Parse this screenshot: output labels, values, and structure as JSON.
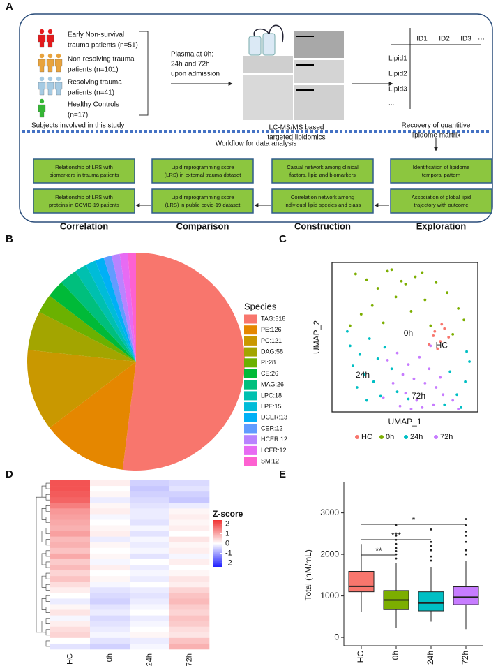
{
  "panel_a": {
    "label": "A",
    "subjects": [
      {
        "lines": [
          "Early Non-survival",
          "trauma patients (n=51)"
        ]
      },
      {
        "lines": [
          "Non-resolving trauma",
          "patients (n=101)"
        ]
      },
      {
        "lines": [
          "Resolving trauma",
          "patients (n=41)"
        ]
      },
      {
        "lines": [
          "Healthy Controls",
          "(n=17)"
        ]
      }
    ],
    "subjects_caption": "Subjects involved in this study",
    "plasma": [
      "Plasma at 0h;",
      "24h and 72h",
      "upon admission"
    ],
    "platform_caption": [
      "LC-MS/MS based",
      "targeted lipidomics"
    ],
    "matrix": {
      "columns": [
        "ID1",
        "ID2",
        "ID3",
        "···"
      ],
      "rows": [
        "Lipid1",
        "Lipid2",
        "Lipid3",
        "..."
      ]
    },
    "matrix_caption": [
      "Recovery of quantitive",
      "lipidome martrix"
    ],
    "workflow_title": "Workflow for data analysis",
    "stages": [
      {
        "title": "Correlation",
        "boxes": [
          [
            "Relationship of LRS with",
            "biomarkers in trauma patients"
          ],
          [
            "Relationship of LRS with",
            "proteins in COVID-19 patients"
          ]
        ]
      },
      {
        "title": "Comparison",
        "boxes": [
          [
            "Lipid reprogramming score",
            "(LRS) in external trauma dataset"
          ],
          [
            "Lipid reprogramming score",
            "(LRS) in public covid-19 dataset"
          ]
        ]
      },
      {
        "title": "Construction",
        "boxes": [
          [
            "Casual network among clinical",
            "factors, lipid and biomarkers"
          ],
          [
            "Correlation network among",
            "individual lipid species and class"
          ]
        ]
      },
      {
        "title": "Exploration",
        "boxes": [
          [
            "Identification of lipidome",
            "temporal pattern"
          ],
          [
            "Association of global lipid",
            "trajectory with outcome"
          ]
        ]
      }
    ]
  },
  "chart_data": [
    {
      "type": "pie",
      "label": "B",
      "legend_title": "Species",
      "categories": [
        "TAG:518",
        "PE:126",
        "PC:121",
        "DAG:58",
        "PI:28",
        "CE:26",
        "MAG:26",
        "LPC:18",
        "LPE:15",
        "DCER:13",
        "CER:12",
        "HCER:12",
        "LCER:12",
        "SM:12"
      ],
      "values": [
        518,
        126,
        121,
        58,
        28,
        26,
        26,
        18,
        15,
        13,
        12,
        12,
        12,
        12
      ],
      "colors": [
        "#F8766D",
        "#E58700",
        "#C99800",
        "#A3A500",
        "#6BB100",
        "#00BA38",
        "#00BF7D",
        "#00C0AF",
        "#00BCD8",
        "#00B0F6",
        "#619CFF",
        "#B983FF",
        "#E76BF3",
        "#FD61D1"
      ]
    },
    {
      "type": "scatter",
      "label": "C",
      "xlabel": "UMAP_1",
      "ylabel": "UMAP_2",
      "xlim": [
        -0.5,
        10
      ],
      "ylim": [
        0,
        10.4
      ],
      "series": [
        {
          "name": "HC",
          "color": "#F8766D",
          "x": [
            6.8,
            7.3,
            7.6,
            7.1,
            6.5,
            7.9,
            7.4,
            6.9
          ],
          "values": [
            5.3,
            4.9,
            5.8,
            4.4,
            4.7,
            5.2,
            6.1,
            5.6
          ]
        },
        {
          "name": "0h",
          "color": "#7CAE00",
          "x": [
            1.2,
            2.0,
            2.8,
            3.5,
            4.1,
            4.8,
            5.5,
            6.2,
            7.0,
            7.8,
            8.6,
            1.6,
            2.4,
            3.2,
            4.5,
            5.2,
            6.6,
            8.2,
            9.0,
            0.8,
            3.8,
            6.0
          ],
          "values": [
            9.6,
            9.2,
            8.6,
            9.8,
            8.0,
            8.9,
            9.4,
            7.8,
            9.0,
            8.3,
            7.2,
            6.8,
            7.4,
            6.2,
            9.1,
            7.0,
            6.0,
            5.4,
            6.4,
            6.0,
            9.9,
            9.7
          ]
        },
        {
          "name": "24h",
          "color": "#00BFC4",
          "x": [
            0.8,
            1.5,
            2.2,
            1.0,
            2.8,
            1.8,
            3.3,
            0.6,
            2.5,
            1.3,
            3.8,
            4.2,
            8.5,
            9.1,
            8.0,
            9.4,
            7.6,
            8.8,
            5.0,
            2.0,
            3.0,
            9.2
          ],
          "values": [
            4.6,
            4.0,
            5.1,
            3.2,
            3.7,
            2.6,
            4.5,
            5.6,
            2.1,
            1.7,
            3.0,
            1.4,
            1.2,
            2.1,
            2.8,
            3.5,
            0.5,
            0.3,
            0.9,
            0.8,
            1.1,
            4.2
          ]
        },
        {
          "name": "72h",
          "color": "#C77CFF",
          "x": [
            3.5,
            4.2,
            5.0,
            5.8,
            6.5,
            4.6,
            5.4,
            6.2,
            7.0,
            3.9,
            4.8,
            5.6,
            6.8,
            7.5,
            8.2,
            4.4,
            5.2,
            6.0,
            7.3,
            8.6,
            3.2,
            6.6
          ],
          "values": [
            3.6,
            4.1,
            3.3,
            3.8,
            3.0,
            2.6,
            2.3,
            2.0,
            1.7,
            2.0,
            1.3,
            0.8,
            0.5,
            1.2,
            0.8,
            0.4,
            0.2,
            0.3,
            2.4,
            0.2,
            1.0,
            4.6
          ]
        }
      ],
      "annotations": [
        {
          "text": "0h",
          "x": 5.0,
          "y": 5.44
        },
        {
          "text": "HC",
          "x": 7.4,
          "y": 4.6
        },
        {
          "text": "24h",
          "x": 1.71,
          "y": 2.53
        },
        {
          "text": "72h",
          "x": 5.73,
          "y": 1.07
        }
      ]
    },
    {
      "type": "heatmap",
      "label": "D",
      "categories": [
        "HC",
        "0h",
        "24h",
        "72h"
      ],
      "values": [
        [
          2,
          0.2,
          -0.5,
          -0.4
        ],
        [
          2,
          0,
          -0.6,
          -0.3
        ],
        [
          1.9,
          0.1,
          -0.5,
          -0.5
        ],
        [
          1.8,
          -0.2,
          -0.4,
          -0.6
        ],
        [
          1.5,
          0.1,
          -0.3,
          -0.2
        ],
        [
          1.2,
          0.2,
          -0.2,
          0.1
        ],
        [
          1.1,
          -0.1,
          -0.2,
          0.2
        ],
        [
          1,
          0,
          -0.3,
          0.1
        ],
        [
          0.9,
          0.1,
          -0.1,
          0.2
        ],
        [
          1.1,
          0.2,
          -0.3,
          0
        ],
        [
          0.8,
          -0.2,
          -0.1,
          0.3
        ],
        [
          0.9,
          0.1,
          -0.2,
          0.1
        ],
        [
          0.7,
          0,
          -0.1,
          0.2
        ],
        [
          1,
          0.1,
          -0.3,
          -0.1
        ],
        [
          0.6,
          -0.1,
          0,
          0.2
        ],
        [
          0.8,
          0.2,
          -0.2,
          0
        ],
        [
          0.5,
          0,
          -0.1,
          0.1
        ],
        [
          0.7,
          0.1,
          -0.2,
          0.3
        ],
        [
          0.4,
          -0.1,
          0,
          0.2
        ],
        [
          0.2,
          -0.3,
          -0.2,
          0.5
        ],
        [
          0,
          -0.4,
          -0.3,
          0.7
        ],
        [
          -0.2,
          -0.5,
          -0.2,
          0.8
        ],
        [
          0.1,
          -0.3,
          -0.1,
          0.6
        ],
        [
          0.3,
          -0.2,
          0,
          0.5
        ],
        [
          -0.1,
          -0.4,
          -0.2,
          0.7
        ],
        [
          0.2,
          -0.3,
          -0.1,
          0.6
        ],
        [
          0.4,
          -0.2,
          0,
          0.4
        ],
        [
          0.5,
          -0.1,
          0.1,
          0.3
        ],
        [
          0,
          -0.3,
          -0.2,
          0.7
        ],
        [
          -0.3,
          -0.5,
          -0.1,
          0.9
        ]
      ],
      "legend_title": "Z-score",
      "zlim": [
        -2.4,
        2.4
      ],
      "zticks": [
        2,
        1,
        0,
        -1,
        -2
      ],
      "colors": [
        "#2020ff",
        "#ffffff",
        "#f03030"
      ]
    },
    {
      "type": "box",
      "label": "E",
      "ylabel": "Total (nM/mL)",
      "categories": [
        "HC",
        "0h",
        "24h",
        "72h"
      ],
      "colors": [
        "#F8766D",
        "#7CAE00",
        "#00BFC4",
        "#C77CFF"
      ],
      "ylim": [
        -200,
        3750
      ],
      "yticks": [
        0,
        1000,
        2000,
        3000
      ],
      "boxes": [
        {
          "whisker_low": 620,
          "q1": 1100,
          "median": 1230,
          "q3": 1590,
          "whisker_high": 2250,
          "outliers": []
        },
        {
          "whisker_low": 230,
          "q1": 670,
          "median": 900,
          "q3": 1130,
          "whisker_high": 1800,
          "outliers": [
            1900,
            2000,
            2080,
            2150,
            2250,
            2350,
            2450,
            2700
          ]
        },
        {
          "whisker_low": 380,
          "q1": 640,
          "median": 830,
          "q3": 1100,
          "whisker_high": 1700,
          "outliers": [
            1850,
            1950,
            2100,
            2200,
            2300,
            2600
          ]
        },
        {
          "whisker_low": 200,
          "q1": 790,
          "median": 970,
          "q3": 1220,
          "whisker_high": 1850,
          "outliers": [
            2000,
            2100,
            2300,
            2450,
            2550,
            2700,
            2850
          ]
        }
      ],
      "significance": [
        {
          "groups": [
            "HC",
            "0h"
          ],
          "label": "**"
        },
        {
          "groups": [
            "HC",
            "24h"
          ],
          "label": "***"
        },
        {
          "groups": [
            "HC",
            "72h"
          ],
          "label": "*"
        }
      ]
    }
  ]
}
